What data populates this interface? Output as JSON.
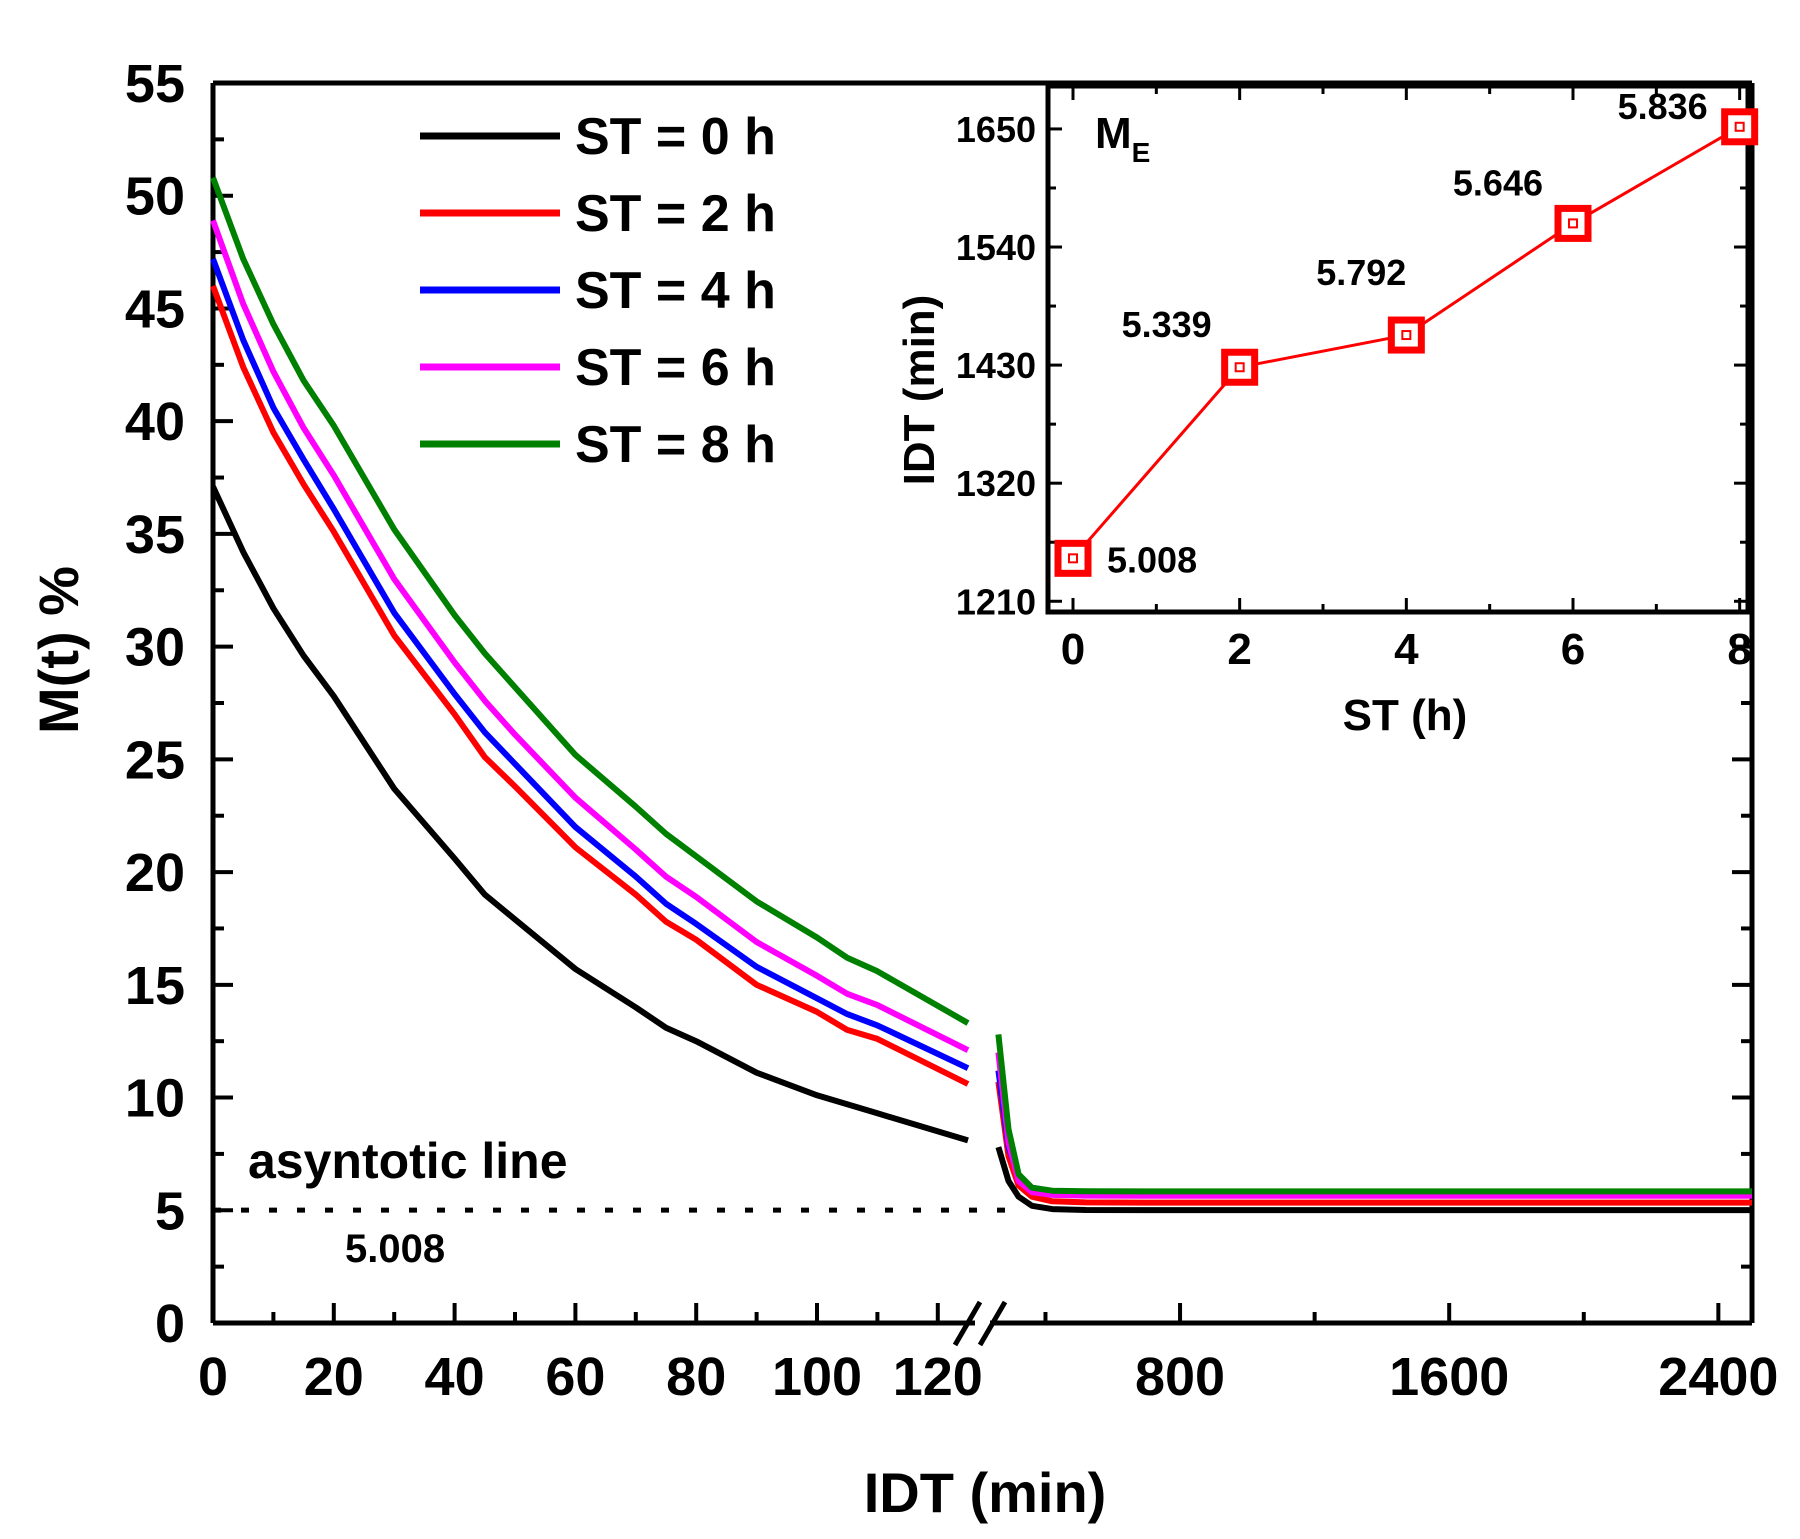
{
  "chart_data": [
    {
      "type": "line",
      "title": "",
      "xlabel": "IDT (min)",
      "ylabel": "M(t) %",
      "ylim": [
        0,
        55
      ],
      "yticks": [
        "0",
        "5",
        "10",
        "15",
        "20",
        "25",
        "30",
        "35",
        "40",
        "45",
        "50",
        "55"
      ],
      "x_segments": [
        {
          "xlim": [
            0,
            125
          ],
          "ticks": [
            "0",
            "20",
            "40",
            "60",
            "80",
            "100",
            "120"
          ]
        },
        {
          "xlim": [
            250,
            2500
          ],
          "ticks": [
            "800",
            "1600",
            "2400"
          ]
        }
      ],
      "axis_break": "between 125 and 250 min",
      "legend": {
        "position": "top-center"
      },
      "series": [
        {
          "name": "ST = 0 h",
          "color": "#000000",
          "seg1": {
            "x": [
              0,
              5,
              10,
              15,
              20,
              30,
              40,
              45,
              50,
              60,
              70,
              75,
              80,
              90,
              100,
              105,
              110,
              125
            ],
            "y": [
              37.1,
              34.2,
              31.7,
              29.6,
              27.8,
              23.7,
              20.6,
              19.0,
              17.9,
              15.7,
              14.0,
              13.1,
              12.5,
              11.1,
              10.1,
              9.7,
              9.3,
              8.1
            ]
          },
          "seg2": {
            "x": [
              260,
              290,
              320,
              360,
              420,
              520,
              700,
              1000,
              1600,
              2500
            ],
            "y": [
              7.8,
              6.3,
              5.6,
              5.2,
              5.05,
              5.01,
              5.008,
              5.008,
              5.008,
              5.008
            ]
          }
        },
        {
          "name": "ST = 2 h",
          "color": "#ff0000",
          "seg1": {
            "x": [
              0,
              5,
              10,
              15,
              20,
              30,
              40,
              45,
              50,
              60,
              70,
              75,
              80,
              90,
              100,
              105,
              110,
              125
            ],
            "y": [
              46.0,
              42.4,
              39.5,
              37.2,
              35.1,
              30.5,
              27.0,
              25.1,
              23.8,
              21.1,
              19.0,
              17.8,
              17.0,
              15.0,
              13.8,
              13.0,
              12.6,
              10.6
            ]
          },
          "seg2": {
            "x": [
              260,
              290,
              320,
              360,
              420,
              520,
              700,
              1000,
              1600,
              2500
            ],
            "y": [
              10.7,
              7.4,
              6.1,
              5.6,
              5.4,
              5.35,
              5.339,
              5.339,
              5.339,
              5.339
            ]
          }
        },
        {
          "name": "ST = 4 h",
          "color": "#0000ff",
          "seg1": {
            "x": [
              0,
              5,
              10,
              15,
              20,
              30,
              40,
              45,
              50,
              60,
              70,
              75,
              80,
              90,
              100,
              105,
              110,
              125
            ],
            "y": [
              47.2,
              43.6,
              40.6,
              38.3,
              36.1,
              31.5,
              27.9,
              26.2,
              24.8,
              22.0,
              19.8,
              18.6,
              17.7,
              15.8,
              14.4,
              13.7,
              13.2,
              11.3
            ]
          },
          "seg2": {
            "x": [
              260,
              290,
              320,
              360,
              420,
              520,
              700,
              1000,
              1600,
              2500
            ],
            "y": [
              11.2,
              7.8,
              6.5,
              6.0,
              5.85,
              5.8,
              5.792,
              5.792,
              5.792,
              5.792
            ]
          }
        },
        {
          "name": "ST = 6 h",
          "color": "#ff00ff",
          "seg1": {
            "x": [
              0,
              5,
              10,
              15,
              20,
              30,
              40,
              45,
              50,
              60,
              70,
              75,
              80,
              90,
              100,
              105,
              110,
              125
            ],
            "y": [
              48.9,
              45.2,
              42.2,
              39.7,
              37.6,
              33.0,
              29.3,
              27.6,
              26.1,
              23.3,
              21.0,
              19.8,
              18.9,
              16.9,
              15.4,
              14.6,
              14.1,
              12.1
            ]
          },
          "seg2": {
            "x": [
              260,
              290,
              320,
              360,
              420,
              520,
              700,
              1000,
              1600,
              2500
            ],
            "y": [
              12.0,
              8.0,
              6.3,
              5.8,
              5.68,
              5.65,
              5.646,
              5.646,
              5.646,
              5.646
            ]
          }
        },
        {
          "name": "ST = 8 h",
          "color": "#008000",
          "seg1": {
            "x": [
              0,
              5,
              10,
              15,
              20,
              30,
              40,
              45,
              50,
              60,
              70,
              75,
              80,
              90,
              100,
              105,
              110,
              125
            ],
            "y": [
              50.8,
              47.2,
              44.3,
              41.8,
              39.8,
              35.2,
              31.4,
              29.7,
              28.2,
              25.2,
              22.9,
              21.7,
              20.7,
              18.7,
              17.1,
              16.2,
              15.6,
              13.3
            ]
          },
          "seg2": {
            "x": [
              260,
              290,
              320,
              360,
              420,
              520,
              700,
              1000,
              1600,
              2500
            ],
            "y": [
              12.8,
              8.6,
              6.6,
              6.0,
              5.87,
              5.84,
              5.836,
              5.836,
              5.836,
              5.836
            ]
          }
        }
      ],
      "annotations": [
        {
          "text": "asyntotic line",
          "x": 5,
          "y": 7.2
        },
        {
          "text": "5.008",
          "x": 20,
          "y": 3.2
        }
      ],
      "reference_line": {
        "y": 5.008,
        "style": "dotted",
        "x_from": 0,
        "x_to": 280
      }
    },
    {
      "type": "line",
      "title": "ME",
      "title_main": "M",
      "title_sub": "E",
      "xlabel": "ST (h)",
      "ylabel": "IDT (min)",
      "xlim": [
        -0.3,
        8.1
      ],
      "ylim": [
        1200,
        1690
      ],
      "xticks": [
        "0",
        "2",
        "4",
        "6",
        "8"
      ],
      "yticks": [
        "1210",
        "1320",
        "1430",
        "1540",
        "1650"
      ],
      "color": "#ff0000",
      "marker": "square",
      "x": [
        0,
        2,
        4,
        6,
        8
      ],
      "y": [
        1250,
        1428,
        1458,
        1562,
        1652
      ],
      "labels": [
        "5.008",
        "5.339",
        "5.792",
        "5.646",
        "5.836"
      ]
    }
  ]
}
